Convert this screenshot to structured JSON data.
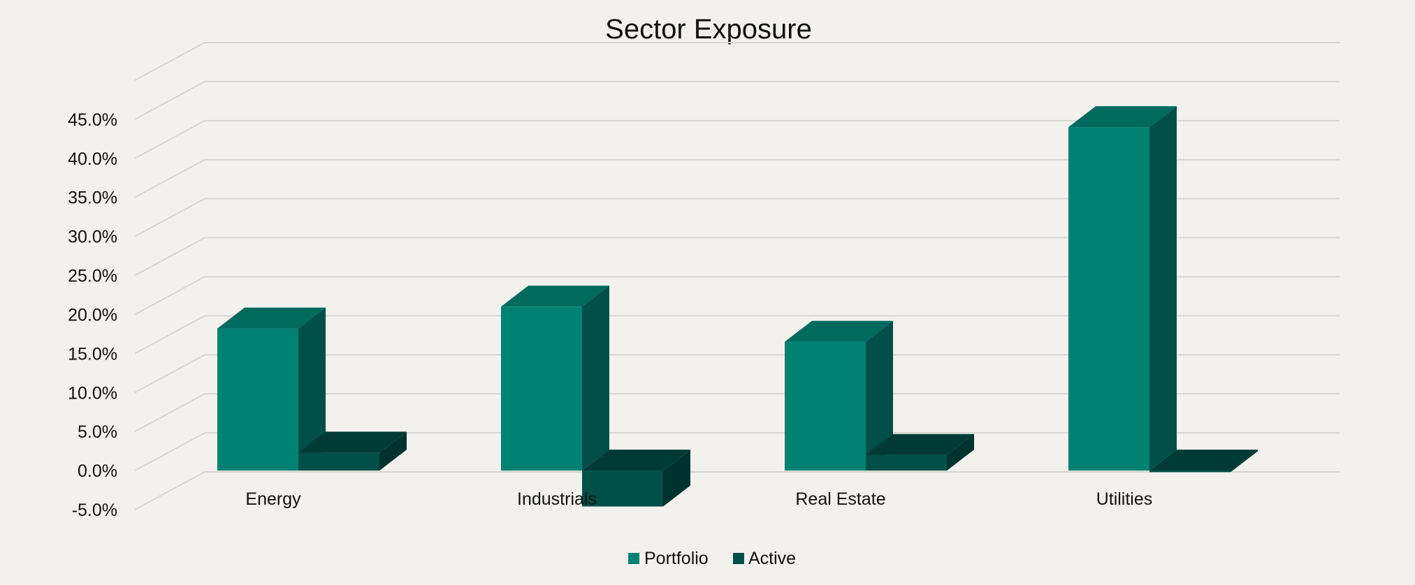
{
  "chart_data": {
    "type": "bar",
    "title": "Sector Exposure",
    "xlabel": "",
    "ylabel": "",
    "categories": [
      "Energy",
      "Industrials",
      "Real Estate",
      "Utilities"
    ],
    "series": [
      {
        "name": "Portfolio",
        "values": [
          18.2,
          21.0,
          16.5,
          44.0
        ],
        "color": "#008272",
        "side_color": "#004f48",
        "top_color": "#006a5e"
      },
      {
        "name": "Active",
        "values": [
          2.3,
          -4.6,
          2.0,
          -0.2
        ],
        "color": "#004f48",
        "side_color": "#003330",
        "top_color": "#003a36"
      }
    ],
    "ylim": [
      -5,
      50
    ],
    "y_ticks": [
      "-5.0%",
      "0.0%",
      "5.0%",
      "10.0%",
      "15.0%",
      "20.0%",
      "25.0%",
      "30.0%",
      "35.0%",
      "40.0%",
      "45.0%"
    ],
    "grid": true,
    "legend_position": "bottom",
    "style": "3d-clustered-column"
  }
}
